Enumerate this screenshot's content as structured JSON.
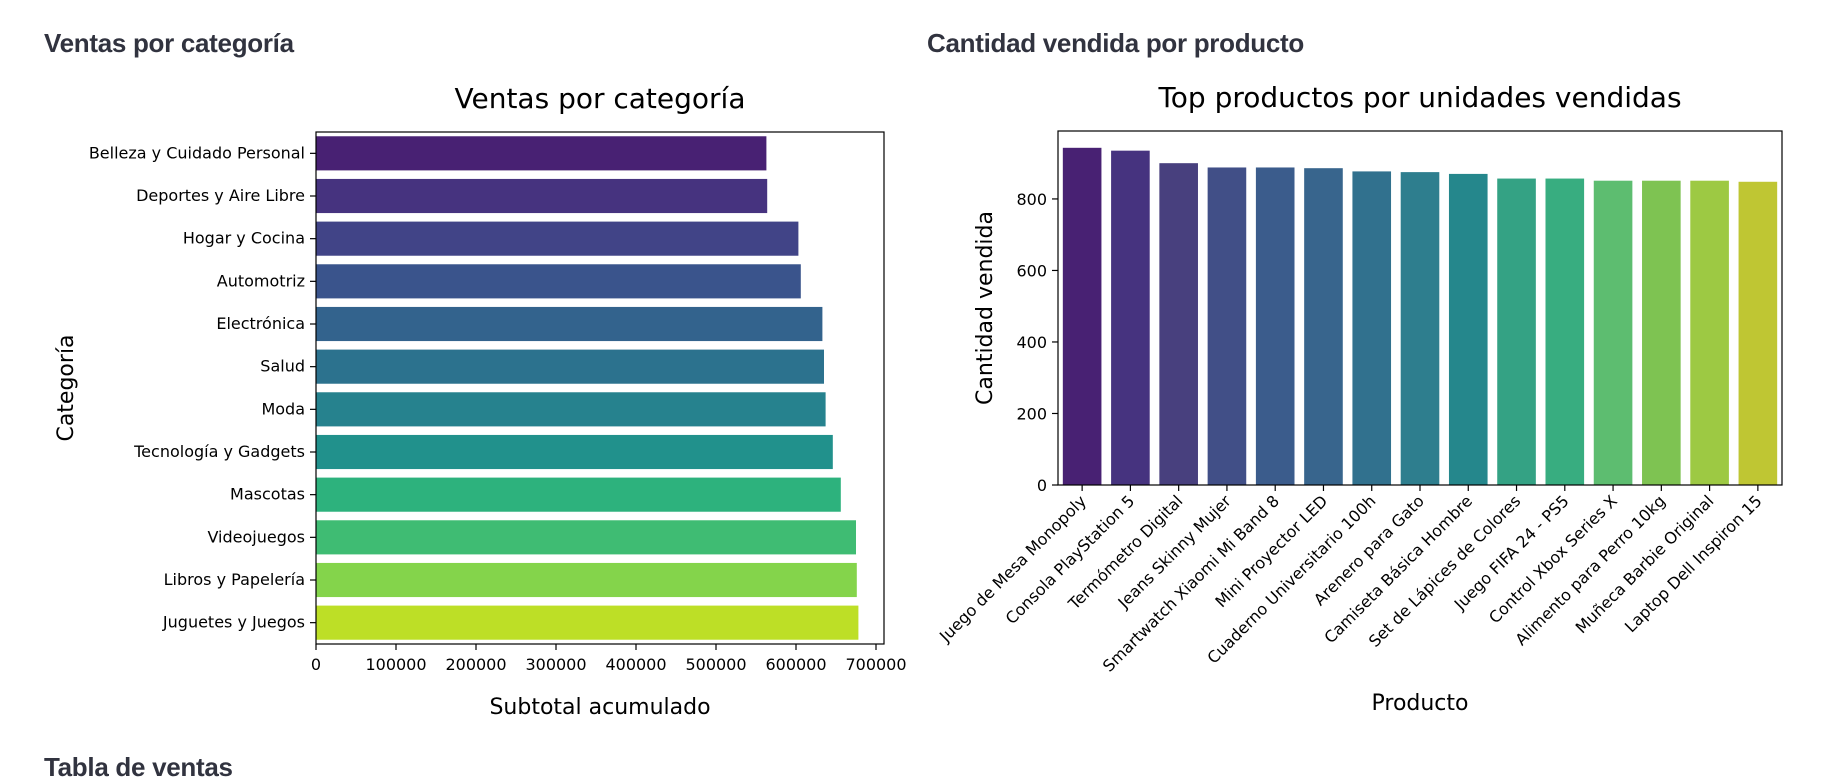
{
  "sections": {
    "left_heading": "Ventas por categoría",
    "right_heading": "Cantidad vendida por producto",
    "table_heading": "Tabla de ventas"
  },
  "chart_data": [
    {
      "type": "bar",
      "orientation": "horizontal",
      "title": "Ventas por categoría",
      "xlabel": "Subtotal acumulado",
      "ylabel": "Categoría",
      "xlim": [
        0,
        710000
      ],
      "x_ticks": [
        0,
        100000,
        200000,
        300000,
        400000,
        500000,
        600000,
        700000
      ],
      "grid": false,
      "categories": [
        "Belleza y Cuidado Personal",
        "Deportes y Aire Libre",
        "Hogar y Cocina",
        "Automotriz",
        "Electrónica",
        "Salud",
        "Moda",
        "Tecnología y Gadgets",
        "Mascotas",
        "Videojuegos",
        "Libros y Papelería",
        "Juguetes y Juegos"
      ],
      "values": [
        563000,
        564000,
        603000,
        606000,
        633000,
        635000,
        637000,
        646000,
        656000,
        675000,
        676000,
        678000
      ],
      "colors": [
        "#482173",
        "#46337f",
        "#414487",
        "#3a548c",
        "#33638d",
        "#2c728e",
        "#26828e",
        "#21918c",
        "#2db27d",
        "#3fbc73",
        "#84d44b",
        "#bddf26"
      ]
    },
    {
      "type": "bar",
      "orientation": "vertical",
      "title": "Top productos por unidades vendidas",
      "xlabel": "Producto",
      "ylabel": "Cantidad vendida",
      "ylim": [
        0,
        990
      ],
      "y_ticks": [
        0,
        200,
        400,
        600,
        800
      ],
      "grid": false,
      "categories": [
        "Juego de Mesa Monopoly",
        "Consola PlayStation 5",
        "Termómetro Digital",
        "Jeans Skinny Mujer",
        "Smartwatch Xiaomi Mi Band 8",
        "Mini Proyector LED",
        "Cuaderno Universitario 100h",
        "Arenero para Gato",
        "Camiseta Básica Hombre",
        "Set de Lápices de Colores",
        "Juego FIFA 24 - PS5",
        "Control Xbox Series X",
        "Alimento para Perro 10kg",
        "Muñeca Barbie Original",
        "Laptop Dell Inspiron 15"
      ],
      "values": [
        943,
        935,
        900,
        888,
        888,
        886,
        877,
        875,
        870,
        857,
        857,
        851,
        851,
        851,
        848
      ],
      "colors": [
        "#482173",
        "#46337f",
        "#48407e",
        "#414f87",
        "#3b5c8c",
        "#38658d",
        "#31718e",
        "#2e7e8e",
        "#25878c",
        "#34a284",
        "#38ad80",
        "#5dbd70",
        "#7ec352",
        "#9dc943",
        "#bfc633"
      ]
    }
  ]
}
